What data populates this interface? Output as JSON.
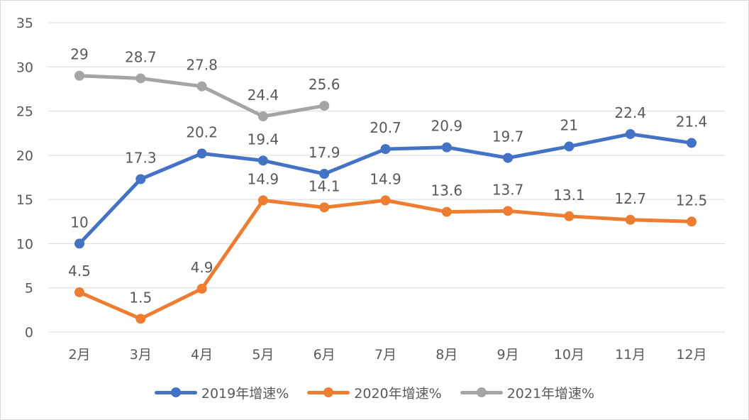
{
  "chart_data": {
    "type": "line",
    "categories": [
      "2月",
      "3月",
      "4月",
      "5月",
      "6月",
      "7月",
      "8月",
      "9月",
      "10月",
      "11月",
      "12月"
    ],
    "ylim": [
      0,
      35
    ],
    "yticks": [
      0,
      5,
      10,
      15,
      20,
      25,
      30,
      35
    ],
    "grid": true,
    "legend_position": "bottom",
    "series": [
      {
        "name": "2019年增速%",
        "color": "#4472c4",
        "values": [
          10,
          17.3,
          20.2,
          19.4,
          17.9,
          20.7,
          20.9,
          19.7,
          21,
          22.4,
          21.4
        ],
        "labels": [
          "10",
          "17.3",
          "20.2",
          "19.4",
          "17.9",
          "20.7",
          "20.9",
          "19.7",
          "21",
          "22.4",
          "21.4"
        ]
      },
      {
        "name": "2020年增速%",
        "color": "#ed7d31",
        "values": [
          4.5,
          1.5,
          4.9,
          14.9,
          14.1,
          14.9,
          13.6,
          13.7,
          13.1,
          12.7,
          12.5
        ],
        "labels": [
          "4.5",
          "1.5",
          "4.9",
          "14.9",
          "14.1",
          "14.9",
          "13.6",
          "13.7",
          "13.1",
          "12.7",
          "12.5"
        ]
      },
      {
        "name": "2021年增速%",
        "color": "#a5a5a5",
        "values": [
          29,
          28.7,
          27.8,
          24.4,
          25.6,
          null,
          null,
          null,
          null,
          null,
          null
        ],
        "labels": [
          "29",
          "28.7",
          "27.8",
          "24.4",
          "25.6",
          null,
          null,
          null,
          null,
          null,
          null
        ]
      }
    ]
  }
}
